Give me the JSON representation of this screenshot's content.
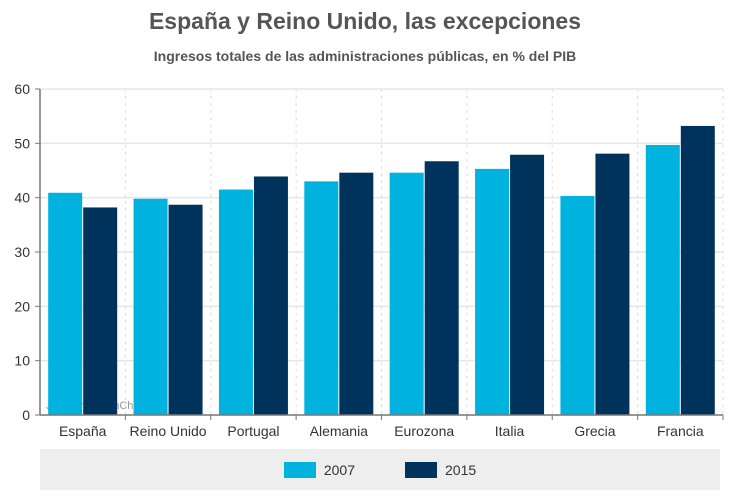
{
  "chart_data": {
    "type": "bar",
    "title": "España y Reino Unido, las excepciones",
    "subtitle": "Ingresos totales de las administraciones públicas, en % del PIB",
    "categories": [
      "España",
      "Reino Unido",
      "Portugal",
      "Alemania",
      "Eurozona",
      "Italia",
      "Grecia",
      "Francia"
    ],
    "series": [
      {
        "name": "2007",
        "color": "#00b2de",
        "values": [
          40.9,
          39.8,
          41.5,
          43.0,
          44.6,
          45.3,
          40.3,
          49.7
        ]
      },
      {
        "name": "2015",
        "color": "#00335c",
        "values": [
          38.2,
          38.7,
          43.9,
          44.6,
          46.7,
          47.9,
          48.1,
          53.2
        ]
      }
    ],
    "ylim": [
      0,
      60
    ],
    "yticks": [
      "0",
      "10",
      "20",
      "30",
      "40",
      "50",
      "60"
    ],
    "grid": true,
    "legend": "bottom",
    "watermark": "JS chart by amCharts"
  }
}
